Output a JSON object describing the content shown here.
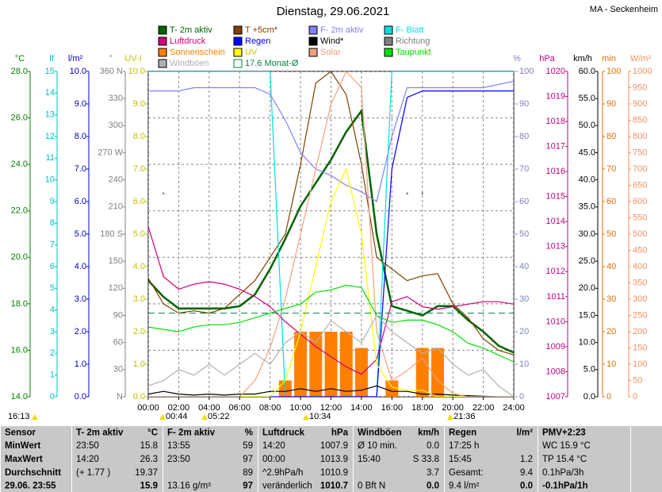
{
  "chart_data": {
    "type": "line",
    "title": "Dienstag, 29.06.2021",
    "subtitle": "MA - Seckenheim",
    "x": [
      0,
      1,
      2,
      3,
      4,
      5,
      6,
      7,
      8,
      9,
      10,
      11,
      12,
      13,
      14,
      15,
      16,
      17,
      18,
      19,
      20,
      21,
      22,
      23,
      24
    ],
    "xlim": [
      0,
      24
    ],
    "xticks": [
      {
        "value": 0,
        "label": "00:00"
      },
      {
        "value": 2,
        "label": "02:00"
      },
      {
        "value": 4,
        "label": "04:00"
      },
      {
        "value": 6,
        "label": "06:00"
      },
      {
        "value": 8,
        "label": "08:00"
      },
      {
        "value": 10,
        "label": "10:00"
      },
      {
        "value": 12,
        "label": "12:00"
      },
      {
        "value": 14,
        "label": "14:00"
      },
      {
        "value": 16,
        "label": "16:00"
      },
      {
        "value": 18,
        "label": "18:00"
      },
      {
        "value": 20,
        "label": "20:00"
      },
      {
        "value": 22,
        "label": "22:00"
      },
      {
        "value": 24,
        "label": "24:00"
      }
    ],
    "grid": true,
    "axes": [
      {
        "label": "°C",
        "color": "#008000",
        "lim": [
          14,
          28
        ],
        "ticks": [
          {
            "value": 14,
            "label": "14.0"
          },
          {
            "value": 16,
            "label": "16.0"
          },
          {
            "value": 18,
            "label": "18.0"
          },
          {
            "value": 20,
            "label": "20.0"
          },
          {
            "value": 22,
            "label": "22.0"
          },
          {
            "value": 24,
            "label": "24.0"
          },
          {
            "value": 26,
            "label": "26.0"
          },
          {
            "value": 28,
            "label": "28.0"
          }
        ]
      },
      {
        "label": "lf",
        "color": "#00c0c0",
        "lim": [
          0,
          15
        ],
        "ticks": [
          0,
          1,
          2,
          3,
          4,
          5,
          6,
          7,
          8,
          9,
          10,
          11,
          12,
          13,
          14,
          15
        ]
      },
      {
        "label": "l/m²",
        "color": "#0000c0",
        "lim": [
          0,
          10
        ],
        "ticks": [
          {
            "value": 0,
            "label": "0.0"
          },
          {
            "value": 1,
            "label": "1.0"
          },
          {
            "value": 2,
            "label": "2.0"
          },
          {
            "value": 3,
            "label": "3.0"
          },
          {
            "value": 4,
            "label": "4.0"
          },
          {
            "value": 5,
            "label": "5.0"
          },
          {
            "value": 6,
            "label": "6.0"
          },
          {
            "value": 7,
            "label": "7.0"
          },
          {
            "value": 8,
            "label": "8.0"
          },
          {
            "value": 9,
            "label": "9.0"
          },
          {
            "value": 10,
            "label": "10.0"
          }
        ]
      },
      {
        "label": "°",
        "color": "#808080",
        "lim": [
          0,
          360
        ],
        "ticks": [
          {
            "value": 0,
            "label": "N"
          },
          30,
          60,
          90,
          120,
          150,
          {
            "value": 180,
            "label": "180 S"
          },
          210,
          240,
          {
            "value": 270,
            "label": "270 W"
          },
          300,
          330,
          {
            "value": 360,
            "label": "360 N"
          }
        ]
      },
      {
        "label": "UV-I",
        "color": "#c0c000",
        "lim": [
          0,
          10
        ],
        "ticks": [
          {
            "value": 0,
            "label": "0.0"
          },
          {
            "value": 1,
            "label": "1.0"
          },
          {
            "value": 2,
            "label": "2.0"
          },
          {
            "value": 3,
            "label": "3.0"
          },
          {
            "value": 4,
            "label": "4.0"
          },
          {
            "value": 5,
            "label": "5.0"
          },
          {
            "value": 6,
            "label": "6.0"
          },
          {
            "value": 7,
            "label": "7.0"
          },
          {
            "value": 8,
            "label": "8.0"
          },
          {
            "value": 9,
            "label": "9.0"
          },
          {
            "value": 10,
            "label": "10.0"
          }
        ]
      },
      {
        "label": "%",
        "color": "#8080c0",
        "lim": [
          0,
          100
        ],
        "ticks": [
          0,
          10,
          20,
          30,
          40,
          50,
          60,
          70,
          80,
          90,
          100
        ]
      },
      {
        "label": "hPa",
        "color": "#c00080",
        "lim": [
          1007,
          1020
        ],
        "ticks": [
          1007,
          1008,
          1009,
          1010,
          1011,
          1012,
          1013,
          1014,
          1015,
          1016,
          1017,
          1018,
          1019,
          1020
        ]
      },
      {
        "label": "km/h",
        "color": "#000000",
        "lim": [
          0,
          60
        ],
        "ticks": [
          {
            "value": 0,
            "label": "0.0"
          },
          {
            "value": 5,
            "label": "5.0"
          },
          {
            "value": 10,
            "label": "10.0"
          },
          {
            "value": 15,
            "label": "15.0"
          },
          {
            "value": 20,
            "label": "20.0"
          },
          {
            "value": 25,
            "label": "25.0"
          },
          {
            "value": 30,
            "label": "30.0"
          },
          {
            "value": 35,
            "label": "35.0"
          },
          {
            "value": 40,
            "label": "40.0"
          },
          {
            "value": 45,
            "label": "45.0"
          },
          {
            "value": 50,
            "label": "50.0"
          },
          {
            "value": 55,
            "label": "55.0"
          },
          {
            "value": 60,
            "label": "60.0"
          }
        ]
      },
      {
        "label": "min",
        "color": "#e07000",
        "lim": [
          0,
          100
        ],
        "ticks": [
          0,
          10,
          20,
          30,
          40,
          50,
          60,
          70,
          80,
          90,
          100
        ]
      },
      {
        "label": "W/m²",
        "color": "#f09060",
        "lim": [
          0,
          1000
        ],
        "ticks": [
          0,
          50,
          100,
          150,
          200,
          250,
          300,
          350,
          400,
          450,
          500,
          550,
          600,
          650,
          700,
          750,
          800,
          850,
          900,
          950,
          1000
        ]
      }
    ],
    "series": [
      {
        "name": "T- 2m aktiv",
        "color": "#006400",
        "axis": 0,
        "type": "line",
        "values": [
          19.0,
          18.3,
          17.8,
          17.8,
          17.8,
          17.8,
          17.9,
          18.4,
          19.5,
          20.8,
          22.2,
          23.2,
          24.2,
          25.4,
          26.3,
          21.0,
          17.9,
          17.7,
          17.5,
          17.9,
          17.9,
          17.3,
          16.8,
          16.2,
          15.9
        ]
      },
      {
        "name": "T +5cm*",
        "color": "#804000",
        "axis": 0,
        "type": "line",
        "values": [
          19.1,
          18.0,
          17.6,
          17.7,
          17.6,
          17.8,
          18.4,
          19.0,
          20.0,
          21.0,
          24.0,
          27.5,
          28.0,
          27.0,
          24.0,
          20.0,
          19.5,
          19.0,
          19.2,
          19.3,
          18.0,
          17.4,
          16.5,
          16.0,
          15.8
        ]
      },
      {
        "name": "F- 2m aktiv",
        "color": "#8080ff",
        "axis": 5,
        "type": "line",
        "values": [
          94,
          94,
          94,
          95,
          95,
          95,
          95,
          95,
          93,
          85,
          75,
          70,
          68,
          65,
          63,
          60,
          80,
          95,
          95,
          95,
          95,
          95,
          95,
          96,
          97
        ]
      },
      {
        "name": "F- Blatt",
        "color": "#00e0e0",
        "axis": 1,
        "type": "line",
        "values": [
          15,
          15,
          15,
          15,
          15,
          15,
          15,
          15,
          15,
          0,
          0,
          0,
          0,
          0,
          0,
          0,
          15,
          15,
          15,
          15,
          15,
          15,
          15,
          15,
          15
        ]
      },
      {
        "name": "Luftdruck",
        "color": "#d0007a",
        "axis": 6,
        "type": "line",
        "values": [
          1013.8,
          1011.8,
          1011.3,
          1011.5,
          1011.6,
          1011.5,
          1011.3,
          1011.0,
          1010.6,
          1010.0,
          1009.5,
          1009.0,
          1008.6,
          1008.2,
          1007.9,
          1008.5,
          1010.8,
          1011.0,
          1010.6,
          1010.5,
          1010.6,
          1010.7,
          1010.8,
          1010.8,
          1010.7
        ]
      },
      {
        "name": "Regen",
        "color": "#0000ff",
        "axis": 2,
        "type": "line",
        "values": [
          0,
          0,
          0,
          0,
          0,
          0,
          0,
          0,
          0,
          0,
          0,
          0,
          0,
          0,
          0,
          0,
          7.0,
          9.2,
          9.4,
          9.4,
          9.4,
          9.4,
          9.4,
          9.4,
          9.4
        ]
      },
      {
        "name": "Wind*",
        "color": "#000000",
        "axis": 7,
        "type": "line",
        "values": [
          0.5,
          1,
          0.5,
          0.3,
          0.5,
          0.3,
          0.5,
          0.5,
          1,
          1,
          1.5,
          1,
          1.5,
          1,
          1.2,
          2,
          1,
          1,
          0.5,
          0.5,
          0.3,
          0.2,
          0.1,
          0,
          0
        ]
      },
      {
        "name": "Richtung",
        "color": "#808080",
        "axis": 3,
        "type": "dots",
        "values": [
          270,
          225,
          null,
          null,
          null,
          null,
          null,
          null,
          null,
          null,
          null,
          null,
          null,
          null,
          null,
          null,
          null,
          225,
          225,
          null,
          null,
          null,
          null,
          null,
          null
        ]
      },
      {
        "name": "Sonnenschein",
        "color": "#ff8000",
        "axis": 8,
        "type": "bar",
        "values": [
          0,
          0,
          0,
          0,
          0,
          0,
          0,
          0,
          0,
          5,
          20,
          20,
          20,
          20,
          15,
          0,
          5,
          0,
          15,
          15,
          0,
          0,
          0,
          0,
          0
        ]
      },
      {
        "name": "UV",
        "color": "#ffff00",
        "axis": 4,
        "type": "line",
        "values": [
          0,
          0,
          0,
          0,
          0,
          0,
          0,
          0,
          0,
          0.5,
          2,
          4,
          6,
          7,
          5,
          1,
          0.3,
          0.2,
          0.2,
          0,
          0,
          0,
          0,
          0,
          0
        ]
      },
      {
        "name": "Solar",
        "color": "#f0a080",
        "axis": 9,
        "type": "line",
        "values": [
          0,
          0,
          0,
          0,
          0,
          0,
          0,
          50,
          150,
          300,
          500,
          700,
          900,
          1000,
          950,
          200,
          50,
          80,
          120,
          50,
          10,
          0,
          0,
          0,
          0
        ]
      },
      {
        "name": "Taupunkt",
        "color": "#00e000",
        "axis": 0,
        "type": "line",
        "values": [
          17.0,
          16.9,
          16.8,
          17.0,
          17.1,
          17.1,
          17.2,
          17.4,
          17.6,
          17.8,
          18.0,
          18.5,
          18.6,
          18.8,
          18.7,
          17.5,
          17.2,
          17.3,
          17.3,
          17.1,
          16.8,
          16.3,
          16.1,
          15.8,
          15.5
        ]
      },
      {
        "name": "Windböen",
        "color": "#b0b0b0",
        "axis": 7,
        "type": "line",
        "values": [
          2,
          3,
          5,
          4,
          6,
          4,
          6,
          8,
          6,
          10,
          12,
          10,
          14,
          12,
          10,
          15,
          12,
          10,
          8,
          9,
          6,
          4,
          5,
          2,
          0
        ]
      },
      {
        "name": "17.6 Monat-Ø",
        "color": "#008040",
        "axis": 0,
        "type": "hline",
        "value": 17.6
      }
    ],
    "annotations": [
      "16:13",
      "00:44",
      "05:22",
      "10:34",
      "21:36"
    ]
  },
  "table": {
    "columns": [
      {
        "lines": [
          {
            "l": "Sensor"
          },
          {
            "l": "MinWert"
          },
          {
            "l": "MaxWert"
          },
          {
            "l": "Durchschnitt"
          },
          {
            "l": "29.06. 23:55"
          }
        ]
      },
      {
        "lines": [
          {
            "l": "T- 2m aktiv",
            "r": "°C"
          },
          {
            "l": "23:50",
            "r": "15.8"
          },
          {
            "l": "14:20",
            "r": "26.3"
          },
          {
            "l": "(+ 1.77 )",
            "r": "19.37"
          },
          {
            "r": "15.9"
          }
        ]
      },
      {
        "lines": [
          {
            "l": "F- 2m aktiv",
            "r": "%"
          },
          {
            "l": "13:55",
            "r": "59"
          },
          {
            "l": "23:50",
            "r": "97"
          },
          {
            "r": "89"
          },
          {
            "l": "13.16 g/m³",
            "r": "97"
          }
        ]
      },
      {
        "lines": [
          {
            "l": "Luftdruck",
            "r": "hPa"
          },
          {
            "l": "14:20",
            "r": "1007.9"
          },
          {
            "l": "00:00",
            "r": "1013.9"
          },
          {
            "l": "^2.9hPa/h",
            "r": "1010.9"
          },
          {
            "l": "veränderlich",
            "r": "1010.7"
          }
        ]
      },
      {
        "lines": [
          {
            "l": "Windböen",
            "r": "km/h"
          },
          {
            "l": "Ø 10 min.",
            "r": "0.0"
          },
          {
            "l": "15:40",
            "r": "S 33.8"
          },
          {
            "r": "3.7"
          },
          {
            "l": "0 Bft N",
            "r": "0.0"
          }
        ]
      },
      {
        "lines": [
          {
            "l": "Regen",
            "r": "l/m²"
          },
          {
            "l": "17:25 h"
          },
          {
            "l": "15:45",
            "r": "1.2"
          },
          {
            "l": "Gesamt:",
            "r": "9.4"
          },
          {
            "l": "9.4 l/m²",
            "r": "0.0"
          }
        ]
      },
      {
        "lines": [
          {
            "l": "PMV+2:23"
          },
          {
            "l": "WC 15.9 °C"
          },
          {
            "l": "TP 15.4 °C"
          },
          {
            "l": "0.1hPa/3h"
          },
          {
            "l": "-0.1hPa/1h"
          }
        ]
      }
    ]
  }
}
